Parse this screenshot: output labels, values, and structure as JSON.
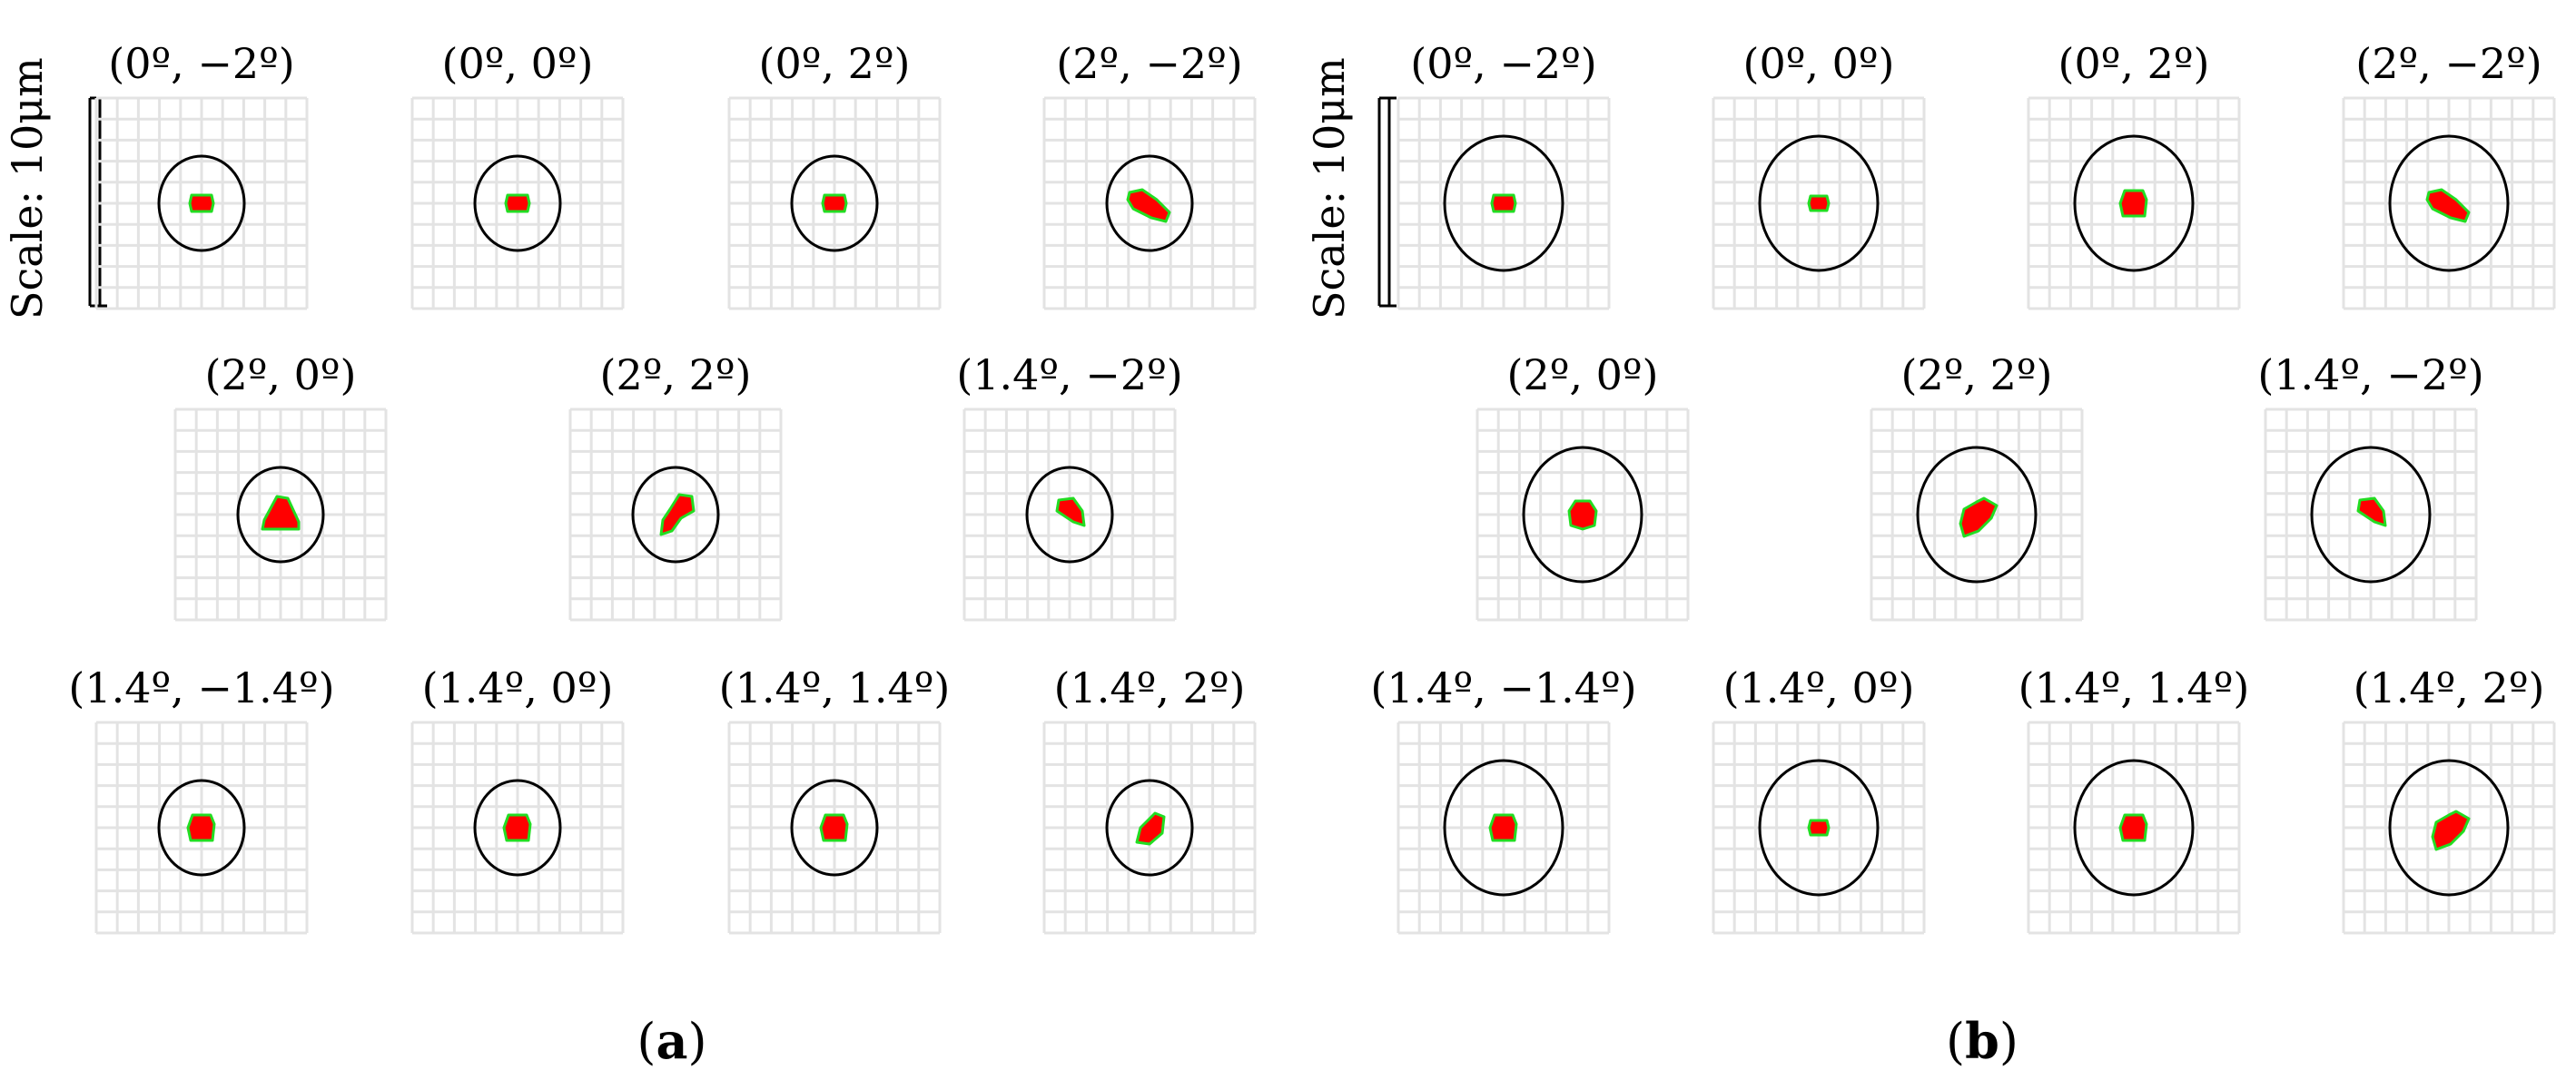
{
  "scale_label": "Scale: 10μm",
  "panels": [
    {
      "label_open": "(",
      "label_letter": "a",
      "label_close": ")",
      "rows": [
        [
          "(0º, −2º)",
          "(0º, 0º)",
          "(0º, 2º)",
          "(2º, −2º)"
        ],
        [
          "(2º, 0º)",
          "(2º, 2º)",
          "(1.4º, −2º)"
        ],
        [
          "(1.4º, −1.4º)",
          "(1.4º, 0º)",
          "(1.4º, 1.4º)",
          "(1.4º, 2º)"
        ]
      ]
    },
    {
      "label_open": "(",
      "label_letter": "b",
      "label_close": ")",
      "rows": [
        [
          "(0º, −2º)",
          "(0º, 0º)",
          "(0º, 2º)",
          "(2º, −2º)"
        ],
        [
          "(2º, 0º)",
          "(2º, 2º)",
          "(1.4º, −2º)"
        ],
        [
          "(1.4º, −1.4º)",
          "(1.4º, 0º)",
          "(1.4º, 1.4º)",
          "(1.4º, 2º)"
        ]
      ]
    }
  ],
  "colors": {
    "grid": "#e3e3e3",
    "circle": "#000000",
    "spot": "#ff0000",
    "spot_edge": "#22dd22"
  }
}
